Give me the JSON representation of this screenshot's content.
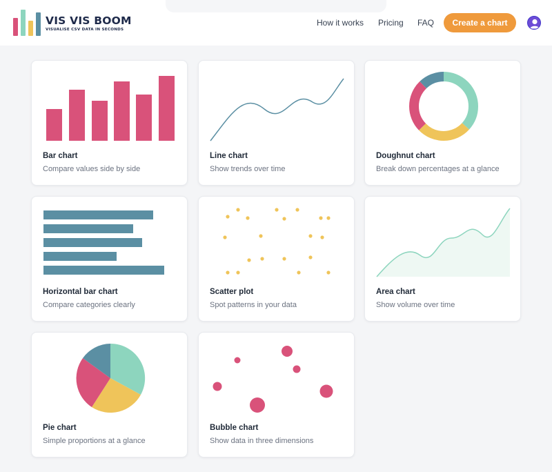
{
  "header": {
    "logo_title": "VIS VIS BOOM",
    "logo_subtitle": "VISUALISE CSV DATA IN SECONDS",
    "nav": [
      {
        "label": "How it works"
      },
      {
        "label": "Pricing"
      },
      {
        "label": "FAQ"
      }
    ],
    "cta_label": "Create a chart",
    "colors": {
      "cta": "#ef9a3c",
      "avatar": "#6d4cd6"
    }
  },
  "colors": {
    "pink": "#d9527a",
    "teal": "#5b8fa3",
    "mint": "#8dd5be",
    "yellow": "#efc45a",
    "area_fill": "#eef8f3"
  },
  "cards": [
    {
      "title": "Bar chart",
      "description": "Compare values side by side",
      "icon": "bar-chart-icon"
    },
    {
      "title": "Line chart",
      "description": "Show trends over time",
      "icon": "line-chart-icon"
    },
    {
      "title": "Doughnut chart",
      "description": "Break down percentages at a glance",
      "icon": "doughnut-chart-icon"
    },
    {
      "title": "Horizontal bar chart",
      "description": "Compare categories clearly",
      "icon": "horizontal-bar-chart-icon"
    },
    {
      "title": "Scatter plot",
      "description": "Spot patterns in your data",
      "icon": "scatter-plot-icon"
    },
    {
      "title": "Area chart",
      "description": "Show volume over time",
      "icon": "area-chart-icon"
    },
    {
      "title": "Pie chart",
      "description": "Simple proportions at a glance",
      "icon": "pie-chart-icon"
    },
    {
      "title": "Bubble chart",
      "description": "Show data in three dimensions",
      "icon": "bubble-chart-icon"
    }
  ]
}
